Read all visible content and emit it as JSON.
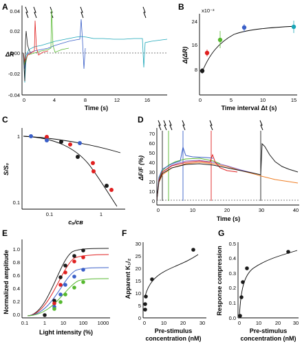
{
  "figure": {
    "panels": {
      "A": {
        "label": "A",
        "ylabel": "ΔR",
        "xlabel": "Time (s)",
        "yticks": [
          "0.04",
          "0.02",
          "0.00",
          "-0.02",
          "-0.04"
        ],
        "xticks": [
          "0",
          "4",
          "8",
          "12",
          "16"
        ]
      },
      "B": {
        "label": "B",
        "ylabel": "Δ(ΔR)",
        "xlabel": "Time interval Δt (s)",
        "exponent": "x10⁻³",
        "yticks": [
          "24",
          "16",
          "8"
        ],
        "xticks": [
          "0",
          "5",
          "10",
          "15"
        ]
      },
      "C": {
        "label": "C",
        "ylabel": "S/S₀",
        "xlabel": "cₐ/cʙ",
        "yticks": [
          "1",
          "0.1"
        ],
        "xticks": [
          "0.1",
          "1"
        ]
      },
      "D": {
        "label": "D",
        "ylabel": "ΔF/F (%)",
        "xlabel": "Time (s)",
        "yticks": [
          "70",
          "60",
          "50",
          "40",
          "30",
          "20",
          "10",
          "0"
        ],
        "xticks": [
          "0",
          "10",
          "20",
          "30",
          "40"
        ]
      },
      "E": {
        "label": "E",
        "ylabel": "Normalized amplitude",
        "xlabel": "Light intensity (%)",
        "yticks": [
          "1.0",
          "0.8",
          "0.6",
          "0.4",
          "0.2",
          "0.0"
        ],
        "xticks": [
          "0.1",
          "1",
          "10",
          "100",
          "1000"
        ]
      },
      "F": {
        "label": "F",
        "ylabel": "Apparent K₁/₂",
        "xlabel_line1": "Pre-stimulus",
        "xlabel_line2": "concentration (nM)",
        "yticks": [
          "30",
          "25",
          "20",
          "15",
          "10",
          "5",
          "0"
        ],
        "xticks": [
          "0",
          "10",
          "20",
          "30"
        ]
      },
      "G": {
        "label": "G",
        "ylabel": "Response compression",
        "xlabel_line1": "Pre-stimulus",
        "xlabel_line2": "concentration (nM)",
        "yticks": [
          "0.5",
          "0.4",
          "0.3",
          "0.2",
          "0.1",
          "0.0"
        ],
        "xticks": [
          "0",
          "10",
          "20",
          "30"
        ]
      }
    },
    "colors": {
      "black": "#1a1a1a",
      "red": "#e02020",
      "green": "#55b82e",
      "blue": "#3a5fc8",
      "cyan": "#1aa6b8",
      "magenta": "#d81b6a",
      "orange": "#ef7d22",
      "purple": "#8a6cc8"
    }
  },
  "chart_data": [
    {
      "panel": "A",
      "type": "line",
      "xlabel": "Time (s)",
      "ylabel": "ΔR",
      "xlim": [
        0,
        18
      ],
      "ylim": [
        -0.04,
        0.04
      ],
      "series": [
        {
          "color": "black",
          "stimulus_times": [
            0,
            0.5
          ],
          "values": [
            [
              0.5,
              0.02
            ],
            [
              1,
              0.015
            ],
            [
              2,
              0.01
            ],
            [
              17.5,
              0.015
            ]
          ]
        },
        {
          "color": "red",
          "stimulus_times": [
            0,
            1.7
          ],
          "values": [
            [
              1.7,
              0.025
            ],
            [
              3,
              0.01
            ],
            [
              4,
              0.005
            ]
          ]
        },
        {
          "color": "green",
          "stimulus_times": [
            0,
            3.5
          ],
          "values": [
            [
              3.5,
              0.03
            ],
            [
              4.5,
              0.008
            ],
            [
              6,
              0.005
            ]
          ]
        },
        {
          "color": "blue",
          "stimulus_times": [
            0,
            7.2
          ],
          "values": [
            [
              7.2,
              0.03
            ],
            [
              7.6,
              0.01
            ],
            [
              9,
              0.008
            ]
          ]
        },
        {
          "color": "cyan",
          "stimulus_times": [
            0,
            15
          ],
          "values": [
            [
              0,
              0.0
            ],
            [
              8,
              0.018
            ],
            [
              15,
              0.012
            ],
            [
              17.5,
              0.012
            ]
          ]
        }
      ]
    },
    {
      "panel": "B",
      "type": "scatter",
      "xlabel": "Time interval Δt (s)",
      "ylabel": "Δ(ΔR)",
      "xlim": [
        0,
        16
      ],
      "ylim": [
        4,
        26
      ],
      "points": [
        {
          "x": 0.5,
          "y": 7.5,
          "err": 0.8,
          "color": "black"
        },
        {
          "x": 1.7,
          "y": 12.8,
          "err": 1.0,
          "color": "red"
        },
        {
          "x": 3.5,
          "y": 17.0,
          "err": 3.0,
          "color": "green"
        },
        {
          "x": 7.2,
          "y": 21.0,
          "err": 1.2,
          "color": "blue"
        },
        {
          "x": 15.0,
          "y": 21.5,
          "err": 2.0,
          "color": "cyan"
        }
      ],
      "fit": "exponential rise to ~22"
    },
    {
      "panel": "C",
      "type": "scatter",
      "xlabel": "cₐ/cʙ",
      "ylabel": "S/S₀",
      "x_scale": "log",
      "y_scale": "log",
      "points": [
        {
          "x": 0.025,
          "y": 0.97,
          "color": "blue"
        },
        {
          "x": 0.06,
          "y": 0.93,
          "color": "red"
        },
        {
          "x": 0.06,
          "y": 0.85,
          "color": "blue"
        },
        {
          "x": 0.15,
          "y": 0.8,
          "color": "black"
        },
        {
          "x": 0.17,
          "y": 0.72,
          "color": "red"
        },
        {
          "x": 0.4,
          "y": 0.75,
          "color": "blue"
        },
        {
          "x": 0.4,
          "y": 0.45,
          "color": "black"
        },
        {
          "x": 0.5,
          "y": 0.3,
          "color": "red"
        },
        {
          "x": 1.3,
          "y": 0.17,
          "color": "black"
        },
        {
          "x": 1.7,
          "y": 0.15,
          "color": "red"
        },
        {
          "x": 1.5,
          "y": 0.6,
          "color": "blue"
        }
      ]
    },
    {
      "panel": "E",
      "type": "line",
      "xlabel": "Light intensity (%)",
      "ylabel": "Normalized amplitude",
      "x_scale": "log",
      "series": [
        {
          "color": "black",
          "x": [
            1,
            3,
            7,
            10,
            20,
            50,
            100
          ],
          "values": [
            0.03,
            0.25,
            0.6,
            0.8,
            0.95,
            1.0,
            1.0
          ]
        },
        {
          "color": "red",
          "x": [
            1,
            3,
            7,
            10,
            20,
            50,
            100
          ],
          "values": [
            0.02,
            0.2,
            0.5,
            0.7,
            0.85,
            0.9,
            0.9
          ]
        },
        {
          "color": "blue",
          "x": [
            1,
            3,
            7,
            10,
            20,
            50,
            100
          ],
          "values": [
            0.02,
            0.15,
            0.35,
            0.5,
            0.62,
            0.7,
            0.72
          ]
        },
        {
          "color": "green",
          "x": [
            1,
            3,
            7,
            10,
            20,
            50,
            100
          ],
          "values": [
            0.01,
            0.12,
            0.25,
            0.35,
            0.5,
            0.55,
            0.57
          ]
        }
      ]
    },
    {
      "panel": "F",
      "type": "scatter",
      "xlabel": "Pre-stimulus concentration (nM)",
      "ylabel": "Apparent K1/2",
      "xlim": [
        0,
        30
      ],
      "ylim": [
        0,
        30
      ],
      "x": [
        0,
        0.5,
        1,
        5,
        25
      ],
      "values": [
        8.5,
        10.5,
        13,
        15.5,
        27.5
      ]
    },
    {
      "panel": "G",
      "type": "scatter",
      "xlabel": "Pre-stimulus concentration (nM)",
      "ylabel": "Response compression",
      "xlim": [
        0,
        30
      ],
      "ylim": [
        0,
        0.5
      ],
      "x": [
        0,
        0.5,
        1,
        5,
        25
      ],
      "values": [
        0.02,
        0.12,
        0.22,
        0.31,
        0.45
      ]
    }
  ]
}
